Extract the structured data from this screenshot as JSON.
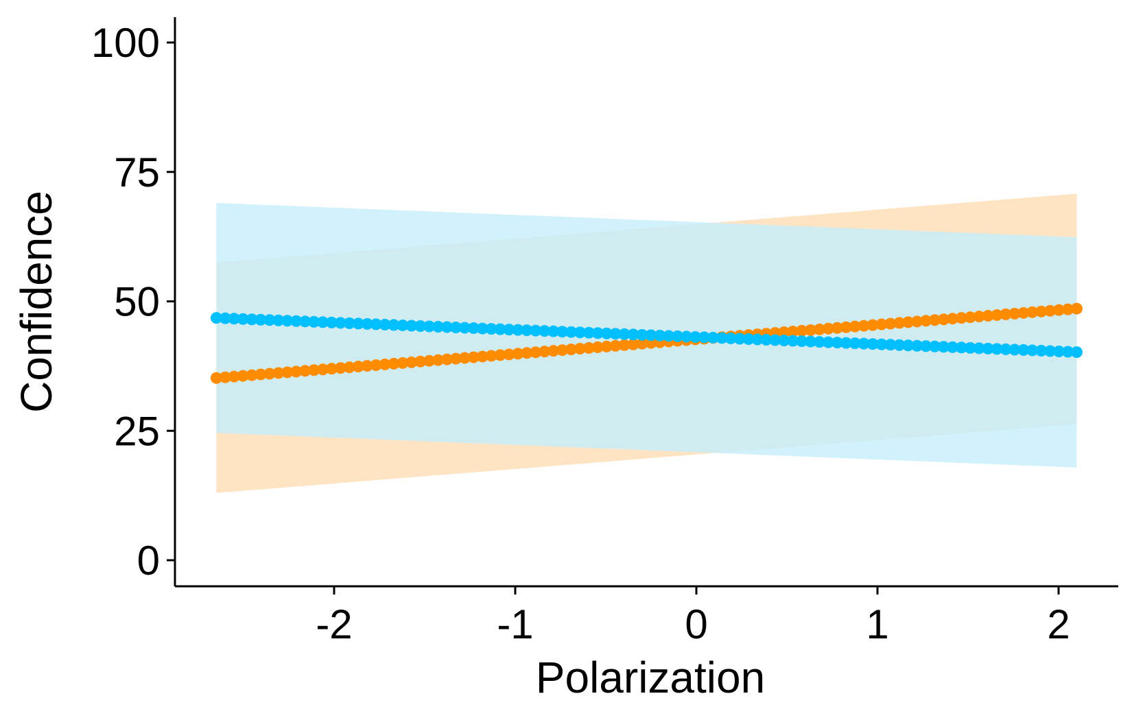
{
  "chart_data": {
    "type": "scatter",
    "title": "",
    "xlabel": "Polarization",
    "ylabel": "Confidence",
    "xlim": [
      -2.85,
      2.35
    ],
    "ylim": [
      -5,
      105
    ],
    "x_ticks": [
      -2,
      -1,
      0,
      1,
      2
    ],
    "x_tick_labels": [
      "-2",
      "-1",
      "0",
      "1",
      "2"
    ],
    "y_ticks": [
      0,
      25,
      50,
      75,
      100
    ],
    "y_tick_labels": [
      "0",
      "25",
      "50",
      "75",
      "100"
    ],
    "grid": false,
    "legend": "none",
    "x_range": [
      -2.65,
      2.1
    ],
    "series": [
      {
        "color": "#FF8C00",
        "band_color": "#FFE4C4",
        "line_start": 35.2,
        "line_end": 48.6,
        "band_upper": [
          57.5,
          70.8
        ],
        "band_lower": [
          13.0,
          26.3
        ],
        "points": 98
      },
      {
        "color": "#00BFFF",
        "band_color": "#C6EDFC",
        "line_start": 46.8,
        "line_end": 40.2,
        "band_upper": [
          69.0,
          62.4
        ],
        "band_lower": [
          24.6,
          17.9
        ],
        "points": 98
      }
    ]
  }
}
